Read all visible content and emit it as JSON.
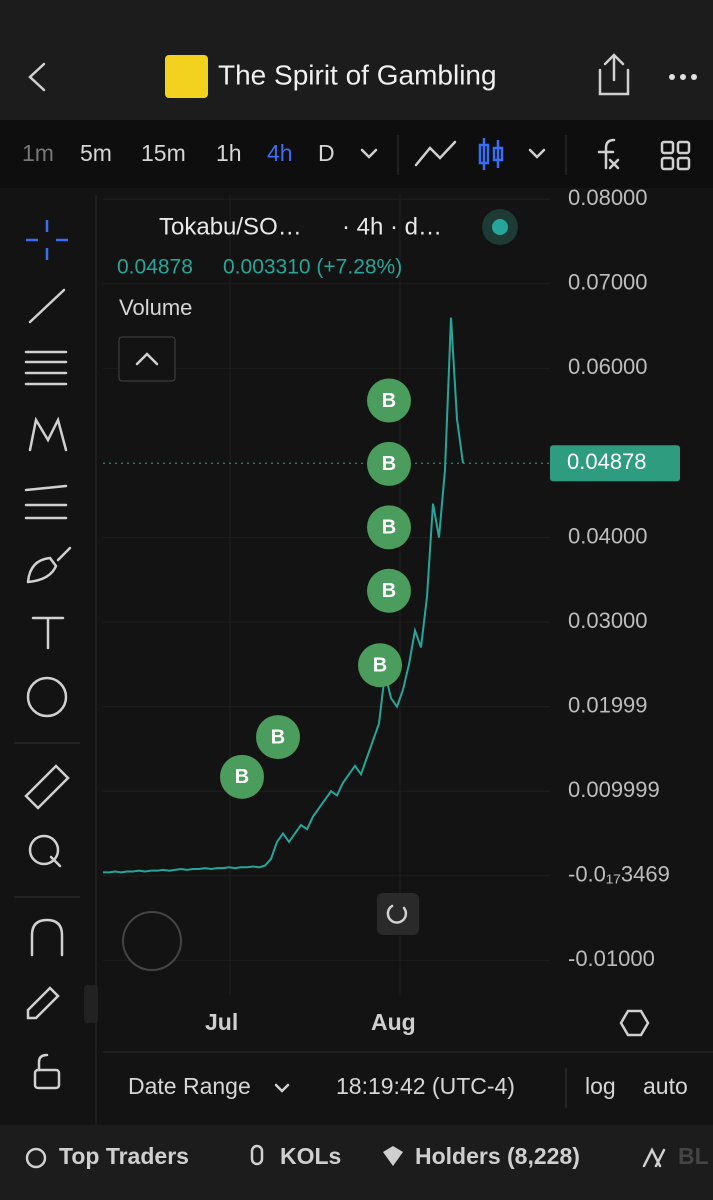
{
  "header": {
    "title": "The Spirit of Gambling"
  },
  "toolbar": {
    "intervals": [
      "1m",
      "5m",
      "15m",
      "1h",
      "4h",
      "D"
    ],
    "selected": "4h"
  },
  "legend": {
    "symbol": "Tokabu/SO…",
    "meta": "· 4h · d…",
    "price": "0.04878",
    "change": "0.003310 (+7.28%)",
    "volume": "Volume"
  },
  "chart_data": {
    "type": "line",
    "color": "#26a69a",
    "values": [
      0.0004,
      0.0004,
      0.0005,
      0.0004,
      0.0005,
      0.0005,
      0.0006,
      0.0005,
      0.0006,
      0.0006,
      0.0007,
      0.0006,
      0.0007,
      0.0008,
      0.0007,
      0.0008,
      0.0008,
      0.0009,
      0.0008,
      0.0009,
      0.0009,
      0.001,
      0.0009,
      0.001,
      0.001,
      0.0011,
      0.001,
      0.0012,
      0.002,
      0.004,
      0.005,
      0.004,
      0.005,
      0.006,
      0.0055,
      0.007,
      0.008,
      0.009,
      0.01,
      0.0095,
      0.011,
      0.012,
      0.013,
      0.012,
      0.014,
      0.016,
      0.018,
      0.024,
      0.021,
      0.02,
      0.022,
      0.025,
      0.029,
      0.027,
      0.033,
      0.044,
      0.04,
      0.048,
      0.066,
      0.054,
      0.04878
    ],
    "ylim": [
      -0.0141,
      0.0805
    ],
    "yticks": [
      {
        "value": 0.08,
        "label": "0.08000"
      },
      {
        "value": 0.07,
        "label": "0.07000"
      },
      {
        "value": 0.06,
        "label": "0.06000"
      },
      {
        "value": 0.04,
        "label": "0.04000"
      },
      {
        "value": 0.03,
        "label": "0.03000"
      },
      0.01999,
      0.009999,
      {
        "value": -3.469e-21,
        "label": "-0.0₁₇3469"
      },
      {
        "value": -0.01,
        "label": "-0.01000"
      }
    ],
    "x_labels": [
      "Jul",
      "Aug"
    ],
    "last_price": {
      "value": 0.04878,
      "label": "0.04878"
    },
    "buy_markers": {
      "label": "B",
      "color": "#4a9d5c",
      "values": [
        0.0562,
        0.0487,
        0.0412,
        0.0337,
        0.0249,
        0.0164,
        0.0117
      ]
    }
  },
  "footer": {
    "date_range": "Date Range",
    "time": "18:19:42 (UTC-4)",
    "log": "log",
    "auto": "auto"
  },
  "tabs": [
    "Top Traders",
    "KOLs",
    "Holders (8,228)",
    "BL"
  ]
}
